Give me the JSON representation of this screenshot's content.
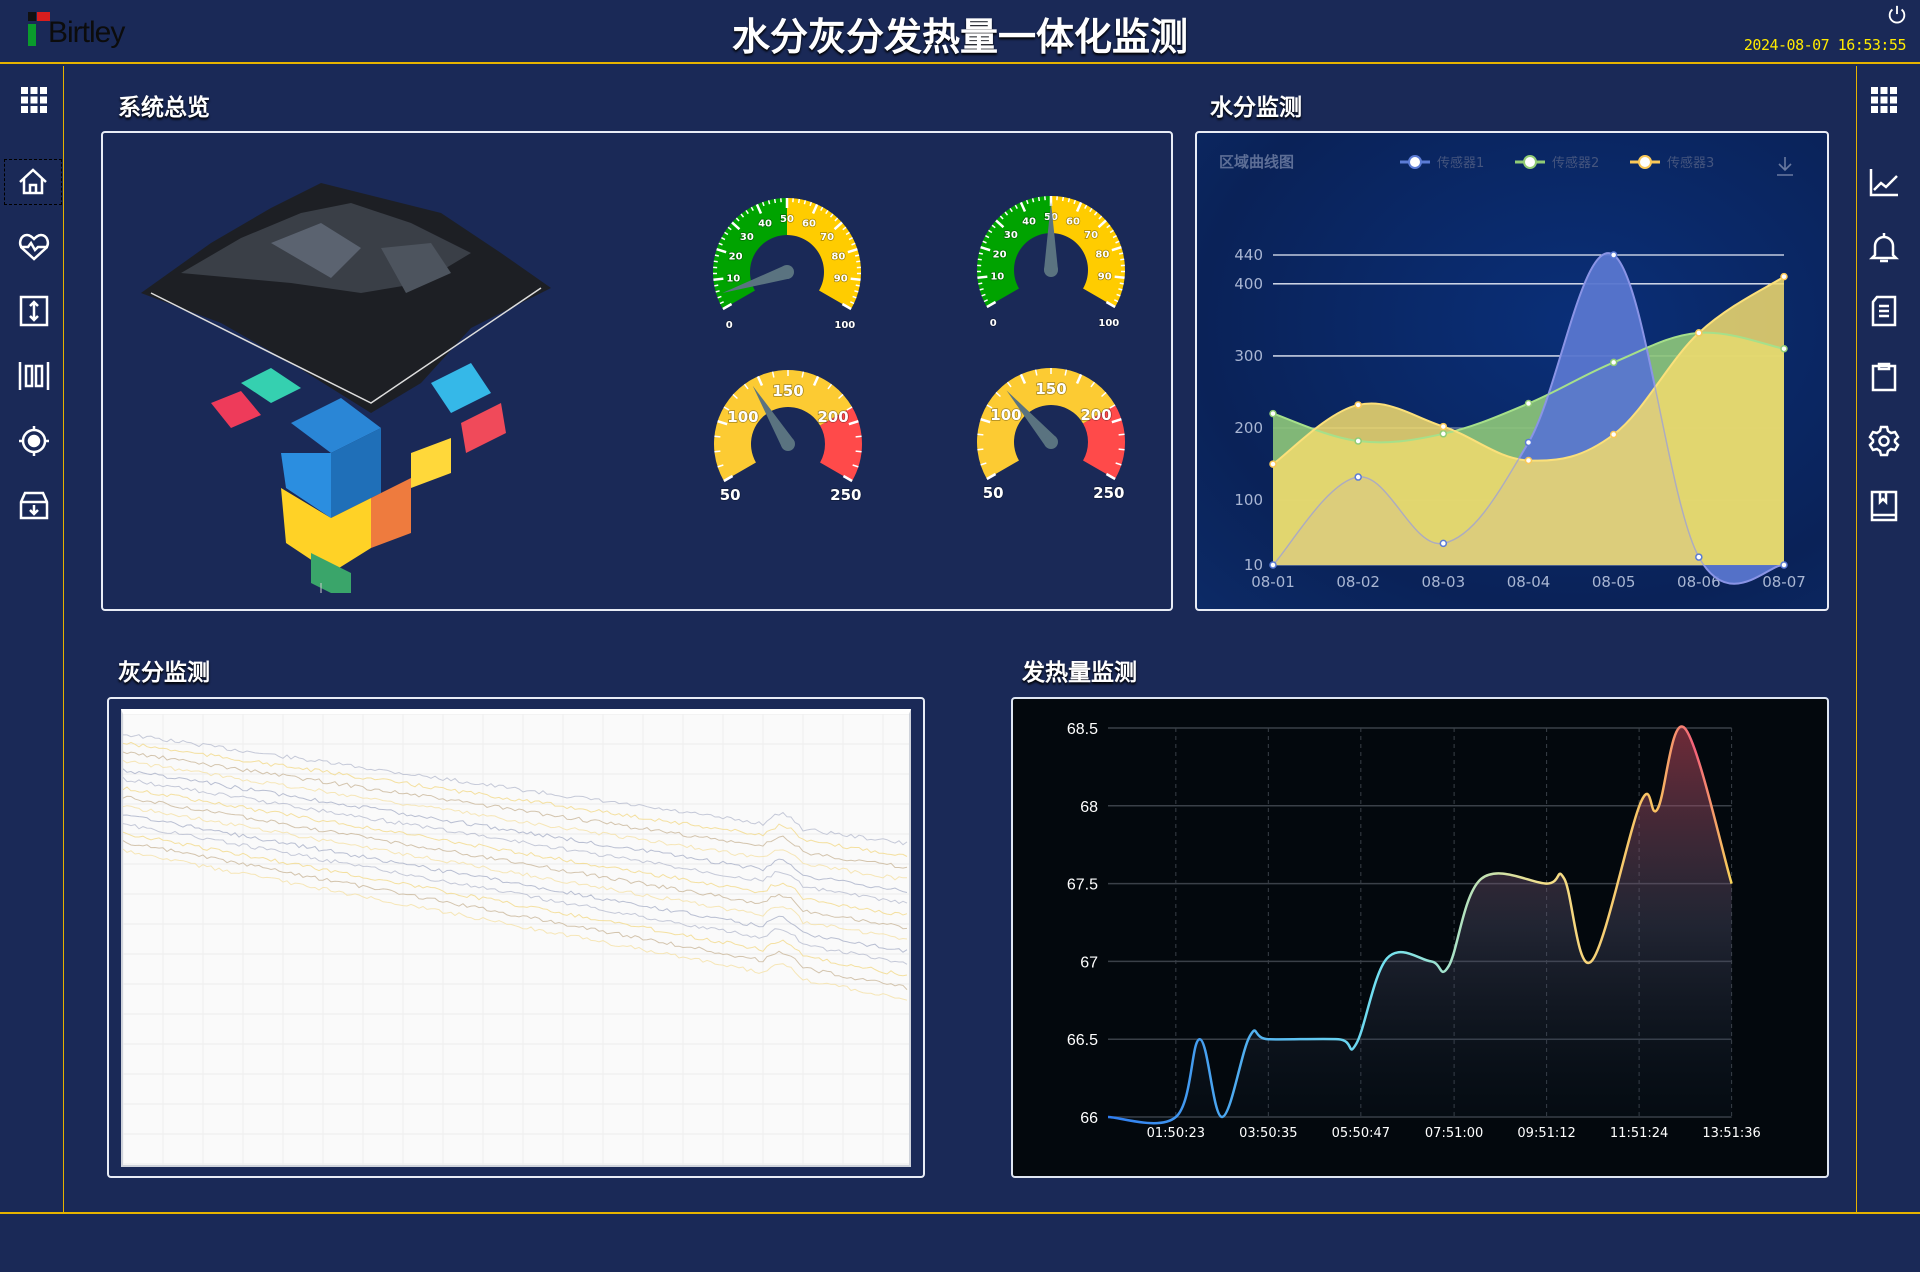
{
  "header": {
    "logo": "Birtley",
    "title": "水分灰分发热量一体化监测",
    "datetime": "2024-08-07 16:53:55",
    "power_icon": "power-icon"
  },
  "colors": {
    "background": "#1a2957",
    "accent": "#e5b300",
    "clock": "#ffea00"
  },
  "left_nav": [
    {
      "icon": "apps-grid-icon"
    },
    {
      "icon": "home-icon",
      "selected": true
    },
    {
      "icon": "heart-pulse-icon"
    },
    {
      "icon": "vertical-arrows-icon"
    },
    {
      "icon": "columns-icon"
    },
    {
      "icon": "target-icon"
    },
    {
      "icon": "archive-download-icon"
    }
  ],
  "right_nav": [
    {
      "icon": "apps-grid-icon"
    },
    {
      "icon": "line-chart-icon"
    },
    {
      "icon": "bell-icon"
    },
    {
      "icon": "document-icon"
    },
    {
      "icon": "clipboard-icon"
    },
    {
      "icon": "gear-icon"
    },
    {
      "icon": "book-icon"
    }
  ],
  "overview": {
    "title": "系统总览",
    "gauges": [
      {
        "min": 0,
        "max": 100,
        "value": 5,
        "ticks": [
          0,
          10,
          20,
          30,
          40,
          50,
          60,
          70,
          80,
          90,
          100
        ],
        "bands": [
          {
            "to": 50,
            "color": "#00a300"
          },
          {
            "to": 100,
            "color": "#ffcc00"
          }
        ]
      },
      {
        "min": 0,
        "max": 100,
        "value": 50,
        "ticks": [
          0,
          10,
          20,
          30,
          40,
          50,
          60,
          70,
          80,
          90,
          100
        ],
        "bands": [
          {
            "to": 50,
            "color": "#00a300"
          },
          {
            "to": 100,
            "color": "#ffcc00"
          }
        ]
      },
      {
        "min": 50,
        "max": 250,
        "value": 124,
        "ticks": [
          50,
          100,
          150,
          200,
          250
        ],
        "bands": [
          {
            "to": 200,
            "color": "#fccb33"
          },
          {
            "to": 250,
            "color": "#ff4a4a"
          }
        ]
      },
      {
        "min": 50,
        "max": 250,
        "value": 116,
        "ticks": [
          50,
          100,
          150,
          200,
          250
        ],
        "bands": [
          {
            "to": 200,
            "color": "#fccb33"
          },
          {
            "to": 250,
            "color": "#ff4a4a"
          }
        ]
      }
    ]
  },
  "moisture": {
    "title": "水分监测",
    "download_icon": "download-icon"
  },
  "ash": {
    "title": "灰分监测"
  },
  "heat": {
    "title": "发热量监测"
  },
  "chart_data": [
    {
      "type": "area",
      "title": "区域曲线图",
      "categories": [
        "08-01",
        "08-02",
        "08-03",
        "08-04",
        "08-05",
        "08-06",
        "08-07"
      ],
      "yticks": [
        10,
        100,
        200,
        300,
        400,
        440
      ],
      "ylim": [
        10,
        440
      ],
      "grid": true,
      "legend": "top-right",
      "series": [
        {
          "name": "传感器1",
          "color": "#5b7bd5",
          "values": [
            10,
            132,
            40,
            180,
            440,
            21,
            10
          ]
        },
        {
          "name": "传感器2",
          "color": "#91cc75",
          "values": [
            220,
            182,
            192,
            234,
            291,
            332,
            310
          ]
        },
        {
          "name": "传感器3",
          "color": "#fac858",
          "values": [
            150,
            232,
            202,
            155,
            191,
            332,
            410
          ]
        }
      ]
    },
    {
      "type": "area",
      "xticks": [
        "01:50:23",
        "03:50:35",
        "05:50:47",
        "07:51:00",
        "09:51:12",
        "11:51:24",
        "13:51:36"
      ],
      "yticks": [
        "66",
        "66.5",
        "67",
        "67.5",
        "68",
        "68.5"
      ],
      "ylim": [
        66,
        68.5
      ],
      "grid": true,
      "points": [
        [
          "00:22",
          66
        ],
        [
          "01:50",
          66
        ],
        [
          "02:21",
          66.5
        ],
        [
          "02:50",
          66
        ],
        [
          "03:26",
          66.52
        ],
        [
          "03:50",
          66.5
        ],
        [
          "05:21",
          66.5
        ],
        [
          "05:44",
          66.47
        ],
        [
          "06:24",
          67.02
        ],
        [
          "07:21",
          67
        ],
        [
          "07:44",
          66.97
        ],
        [
          "08:26",
          67.53
        ],
        [
          "09:51",
          67.5
        ],
        [
          "10:14",
          67.53
        ],
        [
          "10:49",
          67
        ],
        [
          "11:53",
          68.02
        ],
        [
          "12:15",
          67.98
        ],
        [
          "12:50",
          68.5
        ],
        [
          "13:51",
          67.5
        ]
      ]
    }
  ]
}
